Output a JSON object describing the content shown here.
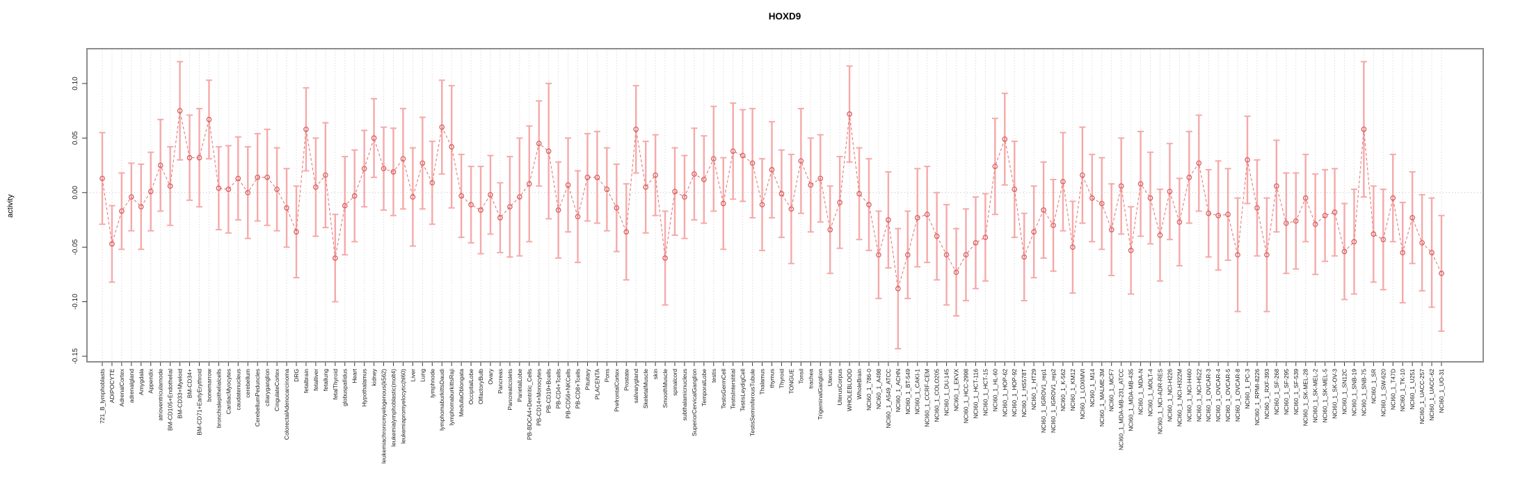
{
  "chart_data": {
    "type": "scatter",
    "subtype": "points-with-error-bars",
    "title": "HOXD9",
    "ylabel": "activity",
    "xlabel": "",
    "ylim": [
      -0.155,
      0.132
    ],
    "yticks": [
      "0.10",
      "0.05",
      "0.00",
      "-0.05",
      "-0.10",
      "-0.15"
    ],
    "ytick_values": [
      0.1,
      0.05,
      0.0,
      -0.05,
      -0.1,
      -0.15
    ],
    "grid": "vertical-dotted-per-category",
    "zero_line": true,
    "legend": "none",
    "colors": {
      "point": "#d95f5f",
      "line": "#e87878",
      "error_bar": "#f5a9a9",
      "grid": "#dcdcdc",
      "box": "#8c8c8c",
      "tick_text": "#1a1a1a"
    },
    "categories": [
      "721_B_lymphoblasts",
      "ADIPOCYTE",
      "AdrenalCortex",
      "adrenalgland",
      "Amygdala",
      "Appendix",
      "atrioventricularnode",
      "BM-CD105+Endothelial",
      "BM-CD33+Myeloid",
      "BM-CD34+",
      "BM-CD71+EarlyErythroid",
      "bonemarrow",
      "bronchialepithelialcells",
      "CardiacMyocytes",
      "caudatenucleus",
      "cerebellum",
      "CerebellumPeduncles",
      "ciliaryganglion",
      "CingulateCortex",
      "ColorectalAdenocarcinoma",
      "DRG",
      "fetalbrain",
      "fetalliver",
      "fetallung",
      "fetalThyroid",
      "globuspallidus",
      "Heart",
      "Hypothalamus",
      "kidney",
      "leukemiachronicmyelogenous(k562)",
      "leukemialymphoblastic(molt4)",
      "leukemiapromyelocytic(hl60)",
      "Liver",
      "Lung",
      "lymphnode",
      "lymphomaburkittsDaudi",
      "lymphomaburkittsRaji",
      "MedullaOblongata",
      "OccipitalLobe",
      "OlfactoryBulb",
      "Ovary",
      "Pancreas",
      "Pancreaticislets",
      "ParietalLobe",
      "PB-BDCA4+Dentritic_Cells",
      "PB-CD14+Monocytes",
      "PB-CD19+Bcells",
      "PB-CD4+Tcells",
      "PB-CD56+NKCells",
      "PB-CD8+Tcells",
      "Pituitary",
      "PLACENTA",
      "Pons",
      "PrefrontalCortex",
      "Prostate",
      "salivarygland",
      "SkeletalMuscle",
      "skin",
      "SmoothMuscle",
      "spinalcord",
      "subthalamicnucleus",
      "SuperiorCervicalGanglion",
      "TemporalLobe",
      "testis",
      "TestisGermCell",
      "TestisInterstitial",
      "TestisLeydigCell",
      "TestisSeminiferousTubule",
      "Thalamus",
      "thymus",
      "Thyroid",
      "TONGUE",
      "Tonsil",
      "trachea",
      "TrigeminalGanglion",
      "Uterus",
      "UterusCorpus",
      "WHOLEBLOOD",
      "WholeBrain",
      "NCI60_1_786-0",
      "NCI60_1_A498",
      "NCI60_1_A549_ATCC",
      "NCI60_1_ACHN",
      "NCI60_1_BT-549",
      "NCI60_1_CAKI-1",
      "NCI60_1_CCRF-CEM",
      "NCI60_1_COLO205",
      "NCI60_1_DU-145",
      "NCI60_1_EKVX",
      "NCI60_1_HCC-2998",
      "NCI60_1_HCT-116",
      "NCI60_1_HCT-15",
      "NCI60_1_HL-60",
      "NCI60_1_HOP-62",
      "NCI60_1_HOP-92",
      "NCI60_1_HS578T",
      "NCI60_1_HT29",
      "NCI60_1_IGROV1_rep1",
      "NCI60_1_IGROV1_rep2",
      "NCI60_1_K-562",
      "NCI60_1_KM12",
      "NCI60_1_LOXIMVI",
      "NCI60_1_M14",
      "NCI60_1_MALME-3M",
      "NCI60_1_MCF7",
      "NCI60_1_MDA-MB-231_ATCC",
      "NCI60_1_MDA-MB-435",
      "NCI60_1_MDA-N",
      "NCI60_1_MOLT-4",
      "NCI60_1_NCI-ADR-RES",
      "NCI60_1_NCI-H226",
      "NCI60_1_NCI-H322M",
      "NCI60_1_NCI-H460",
      "NCI60_1_NCI-H522",
      "NCI60_1_OVCAR-3",
      "NCI60_1_OVCAR-4",
      "NCI60_1_OVCAR-5",
      "NCI60_1_OVCAR-8",
      "NCI60_1_PC-3",
      "NCI60_1_RPMI-8226",
      "NCI60_1_RXF-393",
      "NCI60_1_SF-268",
      "NCI60_1_SF-295",
      "NCI60_1_SF-539",
      "NCI60_1_SK-MEL-28",
      "NCI60_1_SK-MEL-2",
      "NCI60_1_SK-MEL-5",
      "NCI60_1_SK-OV-3",
      "NCI60_1_SN12C",
      "NCI60_1_SNB-19",
      "NCI60_1_SNB-75",
      "NCI60_1_SR",
      "NCI60_1_SW-620",
      "NCI60_1_T47D",
      "NCI60_1_TK-10",
      "NCI60_1_U251",
      "NCI60_1_UACC-257",
      "NCI60_1_UACC-62",
      "NCI60_1_UO-31"
    ],
    "values": [
      0.013,
      -0.047,
      -0.017,
      -0.004,
      -0.013,
      0.001,
      0.025,
      0.006,
      0.075,
      0.032,
      0.032,
      0.067,
      0.004,
      0.003,
      0.013,
      0.0,
      0.014,
      0.014,
      0.003,
      -0.014,
      -0.036,
      0.058,
      0.005,
      0.016,
      -0.06,
      -0.012,
      -0.003,
      0.022,
      0.05,
      0.022,
      0.019,
      0.031,
      -0.004,
      0.027,
      0.009,
      0.06,
      0.042,
      -0.003,
      -0.011,
      -0.016,
      -0.002,
      -0.023,
      -0.013,
      -0.004,
      0.008,
      0.045,
      0.038,
      -0.016,
      0.007,
      -0.022,
      0.014,
      0.014,
      0.003,
      -0.014,
      -0.036,
      0.058,
      0.005,
      0.016,
      -0.06,
      0.001,
      -0.004,
      0.017,
      0.012,
      0.031,
      -0.01,
      0.038,
      0.034,
      0.027,
      -0.011,
      0.021,
      -0.001,
      -0.015,
      0.029,
      0.007,
      0.013,
      -0.034,
      -0.009,
      0.072,
      -0.001,
      -0.011,
      -0.057,
      -0.025,
      -0.088,
      -0.057,
      -0.023,
      -0.02,
      -0.04,
      -0.057,
      -0.073,
      -0.057,
      -0.046,
      -0.041,
      0.024,
      0.049,
      0.003,
      -0.059,
      -0.036,
      -0.016,
      -0.03,
      0.01,
      -0.05,
      0.016,
      -0.005,
      -0.01,
      -0.034,
      0.006,
      -0.053,
      0.008,
      -0.005,
      -0.039,
      0.001,
      -0.027,
      0.014,
      0.027,
      -0.019,
      -0.021,
      -0.02,
      -0.057,
      0.03,
      -0.014,
      -0.057,
      0.006,
      -0.028,
      -0.026,
      -0.005,
      -0.029,
      -0.021,
      -0.018,
      -0.054,
      -0.045,
      0.058,
      -0.038,
      -0.043,
      -0.005,
      -0.055,
      -0.023,
      -0.046,
      -0.055,
      -0.074
    ],
    "errors": [
      0.042,
      0.035,
      0.035,
      0.031,
      0.039,
      0.036,
      0.042,
      0.036,
      0.045,
      0.039,
      0.045,
      0.036,
      0.038,
      0.04,
      0.038,
      0.042,
      0.04,
      0.044,
      0.038,
      0.036,
      0.042,
      0.038,
      0.045,
      0.048,
      0.04,
      0.045,
      0.042,
      0.035,
      0.036,
      0.038,
      0.04,
      0.046,
      0.045,
      0.042,
      0.038,
      0.043,
      0.056,
      0.038,
      0.035,
      0.04,
      0.036,
      0.032,
      0.046,
      0.054,
      0.053,
      0.039,
      0.062,
      0.044,
      0.043,
      0.042,
      0.04,
      0.042,
      0.038,
      0.04,
      0.044,
      0.04,
      0.042,
      0.037,
      0.043,
      0.04,
      0.038,
      0.042,
      0.04,
      0.048,
      0.042,
      0.044,
      0.042,
      0.05,
      0.042,
      0.044,
      0.04,
      0.05,
      0.048,
      0.043,
      0.04,
      0.04,
      0.042,
      0.044,
      0.042,
      0.042,
      0.04,
      0.044,
      0.055,
      0.04,
      0.045,
      0.044,
      0.04,
      0.046,
      0.04,
      0.042,
      0.042,
      0.04,
      0.044,
      0.042,
      0.044,
      0.04,
      0.042,
      0.044,
      0.042,
      0.045,
      0.042,
      0.044,
      0.04,
      0.042,
      0.042,
      0.044,
      0.04,
      0.048,
      0.042,
      0.042,
      0.044,
      0.04,
      0.042,
      0.044,
      0.04,
      0.05,
      0.042,
      0.052,
      0.04,
      0.044,
      0.052,
      0.042,
      0.046,
      0.044,
      0.04,
      0.046,
      0.042,
      0.04,
      0.044,
      0.048,
      0.062,
      0.044,
      0.046,
      0.04,
      0.046,
      0.042,
      0.044,
      0.05,
      0.053
    ]
  }
}
